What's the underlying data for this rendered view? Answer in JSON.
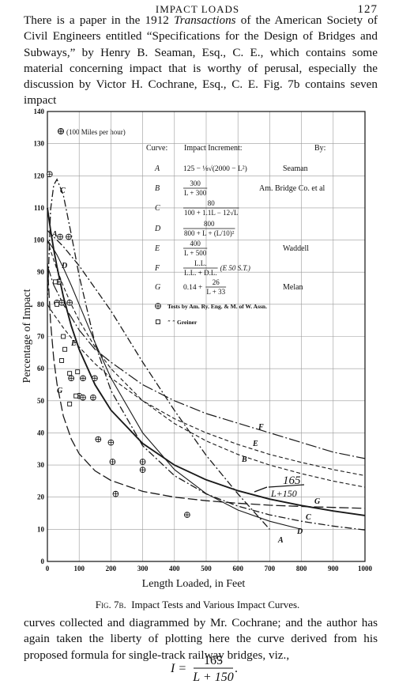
{
  "header": {
    "title": "IMPACT LOADS",
    "page": "127"
  },
  "paragraph_1": [
    "There is a paper in the 1912 ",
    "Transactions",
    " of the American Society of Civil Engineers entitled “Specifications for the Design of Bridges and Subways,” by Henry B. Seaman, Esq., C. E., which contains some material concerning impact that is worthy of perusal, especially the discussion by Victor H. Cochrane, Esq., C. E. Fig. 7b contains seven impact"
  ],
  "chart_data": {
    "type": "line",
    "y_label": "Percentage of Impact",
    "x_label": "Length Loaded, in Feet",
    "annotation": "(100 Miles per hour)",
    "xlim": [
      0,
      1000
    ],
    "ylim": [
      0,
      140
    ],
    "xticks": [
      0,
      100,
      200,
      300,
      400,
      500,
      600,
      700,
      800,
      900,
      1000
    ],
    "yticks": [
      0,
      10,
      20,
      30,
      40,
      50,
      60,
      70,
      80,
      90,
      100,
      110,
      120,
      130,
      140
    ],
    "grid": true,
    "color": "#1a1a1a",
    "x": [
      0,
      10,
      20,
      30,
      50,
      75,
      100,
      150,
      200,
      300,
      400,
      500,
      600,
      700,
      800,
      900,
      1000
    ],
    "series": [
      {
        "label": "A",
        "style": "dash-dot",
        "values": [
          103,
          102,
          101,
          100,
          98,
          95,
          92,
          85,
          78,
          62,
          47,
          33,
          21,
          10,
          null,
          null,
          null
        ]
      },
      {
        "label": "B",
        "style": "dash",
        "values": [
          100,
          96.8,
          93.8,
          90.9,
          85.7,
          80,
          75,
          66.7,
          60,
          50,
          42.9,
          37.5,
          33.3,
          30,
          27.3,
          25,
          23.1
        ]
      },
      {
        "label": "C",
        "style": "dash-dot",
        "values": [
          80,
          109.4,
          117.1,
          118.9,
          114.1,
          101.8,
          88.9,
          67.8,
          53.2,
          36,
          26.7,
          21,
          17.2,
          14.5,
          12.5,
          11,
          9.8
        ]
      },
      {
        "label": "D",
        "style": "solid",
        "values": [
          100,
          98.6,
          97.1,
          95.4,
          91.4,
          85.9,
          80,
          68.1,
          57.1,
          40,
          28.6,
          21.1,
          16,
          12.5,
          10,
          null,
          null
        ]
      },
      {
        "label": "E",
        "style": "dash",
        "values": [
          80,
          78.4,
          76.9,
          75.5,
          72.7,
          69.6,
          66.7,
          61.5,
          57.1,
          50,
          44.4,
          40,
          36.4,
          33.3,
          30.8,
          28.6,
          26.7
        ]
      },
      {
        "label": "F",
        "style": "long-dash-dot",
        "values": [
          92,
          89,
          86,
          84,
          80,
          76,
          72,
          66,
          62,
          55,
          50,
          46,
          43,
          40,
          37,
          34,
          32
        ]
      },
      {
        "label": "G",
        "style": "long-dash",
        "values": [
          92.8,
          74.5,
          63.1,
          55.3,
          45.3,
          38.1,
          33.5,
          28.2,
          25.2,
          21.8,
          20,
          18.9,
          18.1,
          17.5,
          17.1,
          16.8,
          16.5
        ]
      },
      {
        "label": [
          "165",
          "L+150"
        ],
        "style": "heavy",
        "values": [
          110,
          103.1,
          97.1,
          91.7,
          82.5,
          73.3,
          66,
          55,
          47.1,
          36.7,
          30,
          25.4,
          22,
          19.4,
          17.4,
          15.7,
          14.3
        ]
      }
    ],
    "point_sets": [
      {
        "name": "Tests by Am. Ry. Eng. & M. of W. Assn.",
        "marker": "circle-plus",
        "x": [
          7,
          40,
          67,
          35,
          30,
          45,
          70,
          75,
          112,
          149,
          100,
          112,
          144,
          160,
          200,
          205,
          215,
          300,
          300,
          440
        ],
        "y": [
          120.5,
          101,
          101,
          87,
          80.5,
          80.5,
          80.5,
          57,
          57,
          57,
          51.5,
          51,
          51,
          38,
          37,
          31,
          21,
          31,
          28.5,
          14.5
        ]
      },
      {
        "name": "″ ″ Greiner",
        "marker": "square",
        "x": [
          25,
          30,
          50,
          55,
          45,
          70,
          90,
          70,
          95
        ],
        "y": [
          87,
          80,
          70,
          66,
          62.5,
          58.5,
          51.5,
          49,
          59
        ]
      }
    ],
    "legend_table": {
      "headers": [
        "Curve:",
        "Impact Increment:",
        "By:"
      ],
      "rows": [
        {
          "curve": "A",
          "formula": {
            "text": "125 − ⅛√(2000 − L²)"
          },
          "by": "Seaman"
        },
        {
          "curve": "B",
          "formula": {
            "num": "300",
            "den": "L + 300"
          },
          "by": "Am. Bridge Co. et al"
        },
        {
          "curve": "C",
          "formula": {
            "num": "80",
            "den": "100 + 1.1L − 12√L"
          }
        },
        {
          "curve": "D",
          "formula": {
            "num": "800",
            "den": "800 + L + (L/10)²"
          }
        },
        {
          "curve": "E",
          "formula": {
            "num": "400",
            "den": "L + 500"
          },
          "by": "Waddell"
        },
        {
          "curve": "F",
          "formula": {
            "num": "L.L.",
            "den": "L.L. + D.L.",
            "suffix": "(E 50 S.T.)"
          }
        },
        {
          "curve": "G",
          "formula": {
            "prefix": "0.14 +",
            "num": "26",
            "den": "L + 33"
          },
          "by": "Melan"
        }
      ]
    }
  },
  "caption": {
    "label": "Fig. 7b.",
    "text": "Impact Tests and Various Impact Curves."
  },
  "paragraph_2": "curves collected and diagrammed by Mr. Cochrane; and the author has again taken the liberty of plotting here the curve derived from his proposed formula for single-track railway bridges, viz.,",
  "equation": {
    "lhs": "I =",
    "num": "165",
    "den": "L + 150",
    "end": "."
  }
}
